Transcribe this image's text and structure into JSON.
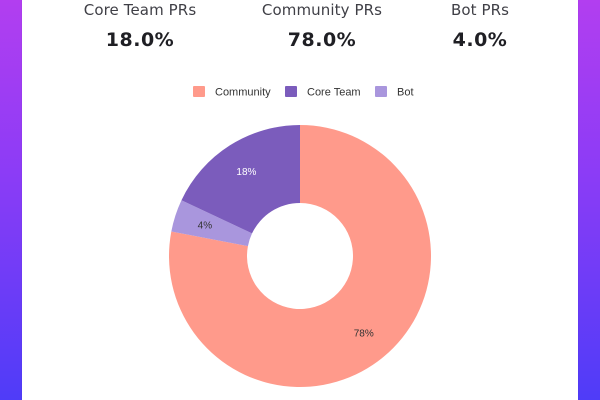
{
  "stats": {
    "core_team": {
      "label": "Core Team PRs",
      "value": "18.0%"
    },
    "community": {
      "label": "Community PRs",
      "value": "78.0%"
    },
    "bot": {
      "label": "Bot PRs",
      "value": "4.0%"
    }
  },
  "chart_data": {
    "type": "pie",
    "donut": true,
    "legend_position": "top",
    "legend": [
      {
        "name": "Community",
        "color": "#ff9a8b"
      },
      {
        "name": "Core Team",
        "color": "#7b5cbc"
      },
      {
        "name": "Bot",
        "color": "#a996dd"
      }
    ],
    "slices": [
      {
        "name": "Community",
        "value": 78,
        "label": "78%",
        "color": "#ff9a8b",
        "label_color": "#333333"
      },
      {
        "name": "Bot",
        "value": 4,
        "label": "4%",
        "color": "#a996dd",
        "label_color": "#333333"
      },
      {
        "name": "Core Team",
        "value": 18,
        "label": "18%",
        "color": "#7b5cbc",
        "label_color": "#ffffff"
      }
    ]
  }
}
